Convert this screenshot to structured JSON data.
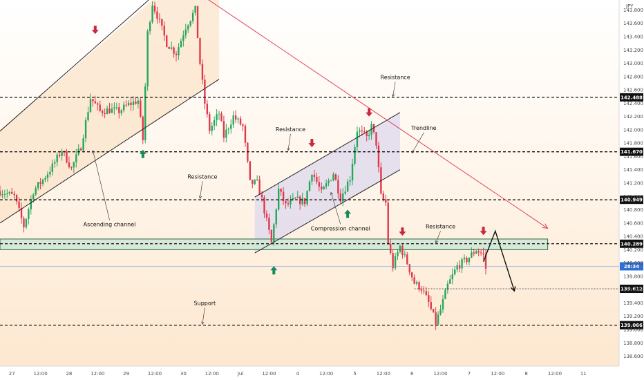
{
  "chart_data": {
    "type": "candlestick",
    "currency_label": "JPY",
    "y_axis": {
      "range": [
        138.45,
        143.95
      ],
      "ticks": [
        143.8,
        143.6,
        143.4,
        143.2,
        143.0,
        142.8,
        142.6,
        142.4,
        142.2,
        142.0,
        141.8,
        141.6,
        141.4,
        141.2,
        141.0,
        140.8,
        140.6,
        140.4,
        140.2,
        140.0,
        139.8,
        139.6,
        139.4,
        139.2,
        139.0,
        138.8,
        138.6
      ],
      "tick_labels": [
        "143.800",
        "143.600",
        "143.400",
        "143.200",
        "143.000",
        "142.800",
        "142.600",
        "142.400",
        "142.200",
        "142.000",
        "141.800",
        "141.600",
        "141.400",
        "141.200",
        "141.000",
        "140.800",
        "140.600",
        "140.400",
        "140.200",
        "140.000",
        "139.800",
        "139.600",
        "139.400",
        "139.200",
        "139.000",
        "138.800",
        "138.600"
      ]
    },
    "x_axis": {
      "range_hours": [
        0,
        260
      ],
      "ticks": [
        {
          "t": 5,
          "label": "27"
        },
        {
          "t": 17,
          "label": "12:00"
        },
        {
          "t": 29,
          "label": "28"
        },
        {
          "t": 41,
          "label": "12:00"
        },
        {
          "t": 53,
          "label": "29"
        },
        {
          "t": 65,
          "label": "12:00"
        },
        {
          "t": 77,
          "label": "30"
        },
        {
          "t": 89,
          "label": "12:00"
        },
        {
          "t": 101,
          "label": "Jul"
        },
        {
          "t": 113,
          "label": "12:00"
        },
        {
          "t": 125,
          "label": "4"
        },
        {
          "t": 137,
          "label": "12:00"
        },
        {
          "t": 149,
          "label": "5"
        },
        {
          "t": 161,
          "label": "12:00"
        },
        {
          "t": 173,
          "label": "6"
        },
        {
          "t": 185,
          "label": "12:00"
        },
        {
          "t": 197,
          "label": "7"
        },
        {
          "t": 209,
          "label": "12:00"
        },
        {
          "t": 221,
          "label": "8"
        },
        {
          "t": 233,
          "label": "12:00"
        },
        {
          "t": 245,
          "label": "11"
        }
      ]
    },
    "price_levels": [
      {
        "value": 142.488,
        "label": "142.488"
      },
      {
        "value": 141.67,
        "label": "141.670"
      },
      {
        "value": 140.949,
        "label": "140.949"
      },
      {
        "value": 140.289,
        "label": "140.289"
      },
      {
        "value": 139.066,
        "label": "139.066"
      }
    ],
    "target_level": {
      "value": 139.612,
      "label": "139.612",
      "from_t": 174
    },
    "current_price": {
      "value": 139.95,
      "label": "28:34"
    },
    "support_zone": {
      "low": 140.2,
      "high": 140.36
    },
    "trendline": {
      "from": [
        86,
        143.99
      ],
      "to": [
        230,
        140.52
      ]
    },
    "ascending_channel": {
      "upper": {
        "from": [
          0,
          141.98
        ],
        "to": [
          64,
          144.0
        ]
      },
      "lower": {
        "from": [
          0,
          140.6
        ],
        "to": [
          92,
          142.76
        ]
      },
      "shade_until": 92
    },
    "compression_channel": {
      "upper": {
        "from": [
          107,
          140.99
        ],
        "to": [
          168,
          142.26
        ]
      },
      "lower": {
        "from": [
          107,
          140.15
        ],
        "to": [
          168,
          141.4
        ]
      }
    },
    "projection": [
      [
        203,
        140.02
      ],
      [
        208,
        140.48
      ],
      [
        216,
        139.58
      ]
    ],
    "arrows_down": [
      {
        "t": 40,
        "price": 143.47
      },
      {
        "t": 131,
        "price": 141.77
      },
      {
        "t": 155,
        "price": 142.23
      },
      {
        "t": 169,
        "price": 140.44
      },
      {
        "t": 203,
        "price": 140.45
      }
    ],
    "arrows_up": [
      {
        "t": 60,
        "price": 141.67
      },
      {
        "t": 115,
        "price": 139.92
      },
      {
        "t": 146,
        "price": 140.77
      }
    ],
    "annotations": [
      {
        "text": "Ascending channel",
        "x_t": 46,
        "price": 140.55,
        "pointer_to": [
          39,
          141.69
        ]
      },
      {
        "text": "Resistance",
        "x_t": 85,
        "price": 141.27,
        "pointer_to": [
          84,
          140.97
        ]
      },
      {
        "text": "Resistance",
        "x_t": 122,
        "price": 141.98,
        "pointer_to": [
          121,
          141.69
        ]
      },
      {
        "text": "Compression channel",
        "x_t": 143,
        "price": 140.49,
        "pointer_to": [
          139,
          141.06
        ]
      },
      {
        "text": "Resistance",
        "x_t": 166,
        "price": 142.76,
        "pointer_to": [
          165,
          142.5
        ]
      },
      {
        "text": "Trendline",
        "x_t": 178,
        "price": 142.0,
        "pointer_to": [
          173,
          141.65
        ]
      },
      {
        "text": "Resistance",
        "x_t": 185,
        "price": 140.52,
        "pointer_to": [
          183,
          140.3
        ]
      },
      {
        "text": "Support",
        "x_t": 86,
        "price": 139.37,
        "pointer_to": [
          85,
          139.08
        ]
      }
    ],
    "candles_anchor_path": [
      [
        0,
        141.08
      ],
      [
        6,
        141.0
      ],
      [
        10,
        140.55
      ],
      [
        14,
        141.08
      ],
      [
        18,
        141.25
      ],
      [
        22,
        141.45
      ],
      [
        26,
        141.7
      ],
      [
        30,
        141.42
      ],
      [
        34,
        141.75
      ],
      [
        38,
        142.48
      ],
      [
        42,
        142.28
      ],
      [
        46,
        142.3
      ],
      [
        50,
        142.28
      ],
      [
        54,
        142.38
      ],
      [
        58,
        142.44
      ],
      [
        60,
        141.85
      ],
      [
        62,
        143.45
      ],
      [
        64,
        143.9
      ],
      [
        66,
        143.72
      ],
      [
        70,
        143.3
      ],
      [
        74,
        143.15
      ],
      [
        78,
        143.55
      ],
      [
        82,
        143.8
      ],
      [
        84,
        143.0
      ],
      [
        86,
        142.4
      ],
      [
        88,
        142.0
      ],
      [
        92,
        142.25
      ],
      [
        94,
        141.9
      ],
      [
        98,
        142.2
      ],
      [
        102,
        142.05
      ],
      [
        105,
        141.2
      ],
      [
        108,
        141.2
      ],
      [
        110,
        140.95
      ],
      [
        114,
        140.3
      ],
      [
        117,
        141.1
      ],
      [
        120,
        140.86
      ],
      [
        124,
        140.95
      ],
      [
        128,
        140.92
      ],
      [
        131,
        141.38
      ],
      [
        135,
        141.05
      ],
      [
        140,
        141.35
      ],
      [
        143,
        140.98
      ],
      [
        147,
        141.28
      ],
      [
        150,
        142.0
      ],
      [
        154,
        141.88
      ],
      [
        156,
        142.05
      ],
      [
        158,
        141.8
      ],
      [
        160,
        141.0
      ],
      [
        162,
        140.9
      ],
      [
        163,
        140.3
      ],
      [
        165,
        139.95
      ],
      [
        168,
        140.25
      ],
      [
        171,
        140.0
      ],
      [
        174,
        139.7
      ],
      [
        177,
        139.62
      ],
      [
        180,
        139.4
      ],
      [
        183,
        139.1
      ],
      [
        185,
        139.3
      ],
      [
        188,
        139.66
      ],
      [
        192,
        139.95
      ],
      [
        196,
        140.05
      ],
      [
        200,
        140.2
      ],
      [
        203,
        140.12
      ],
      [
        204,
        139.92
      ]
    ]
  }
}
